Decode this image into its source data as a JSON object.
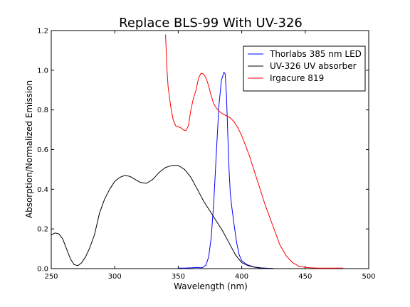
{
  "chart_data": {
    "type": "line",
    "title": "Replace BLS-99 With UV-326",
    "xlabel": "Wavelength (nm)",
    "ylabel": "Absorption/Normalized Emission",
    "xlim": [
      250,
      500
    ],
    "ylim": [
      0.0,
      1.2
    ],
    "xticks": [
      "250",
      "300",
      "350",
      "400",
      "450",
      "500"
    ],
    "yticks": [
      "0.0",
      "0.2",
      "0.4",
      "0.6",
      "0.8",
      "1.0",
      "1.2"
    ],
    "grid": false,
    "legend": "top-right",
    "series": [
      {
        "name": "Thorlabs 385 nm LED",
        "color": "#0000ff",
        "x": [
          350,
          355,
          360,
          365,
          368,
          370,
          372,
          374,
          376,
          378,
          380,
          382,
          384,
          386,
          387,
          388,
          389,
          390,
          391,
          392,
          394,
          396,
          398,
          400,
          404,
          410,
          415,
          420,
          425
        ],
        "y": [
          0.003,
          0.003,
          0.004,
          0.006,
          0.004,
          0.008,
          0.02,
          0.06,
          0.16,
          0.34,
          0.58,
          0.82,
          0.95,
          0.99,
          0.98,
          0.87,
          0.68,
          0.5,
          0.38,
          0.32,
          0.22,
          0.13,
          0.07,
          0.04,
          0.02,
          0.008,
          0.004,
          0.002,
          0.001
        ]
      },
      {
        "name": "UV-326 UV absorber",
        "color": "#000000",
        "x": [
          250,
          253,
          256,
          259,
          262,
          265,
          268,
          271,
          274,
          277,
          280,
          284,
          288,
          292,
          296,
          300,
          304,
          308,
          312,
          316,
          320,
          325,
          330,
          335,
          340,
          345,
          350,
          355,
          360,
          365,
          370,
          375,
          380,
          385,
          390,
          395,
          400,
          405,
          410,
          415,
          420,
          425
        ],
        "y": [
          0.17,
          0.18,
          0.175,
          0.15,
          0.1,
          0.05,
          0.02,
          0.015,
          0.03,
          0.06,
          0.1,
          0.17,
          0.28,
          0.35,
          0.4,
          0.44,
          0.46,
          0.47,
          0.465,
          0.45,
          0.435,
          0.43,
          0.45,
          0.485,
          0.51,
          0.52,
          0.52,
          0.5,
          0.46,
          0.4,
          0.34,
          0.29,
          0.24,
          0.19,
          0.13,
          0.07,
          0.03,
          0.015,
          0.007,
          0.003,
          0.001,
          0.0
        ]
      },
      {
        "name": "Irgacure 819",
        "color": "#ff0000",
        "x": [
          340,
          341,
          342,
          344,
          346,
          348,
          350,
          352,
          354,
          356,
          358,
          360,
          362,
          364,
          366,
          368,
          370,
          372,
          374,
          376,
          378,
          380,
          382,
          385,
          388,
          391,
          394,
          397,
          400,
          403,
          406,
          410,
          414,
          418,
          422,
          426,
          430,
          435,
          440,
          445,
          450,
          455,
          460,
          470,
          480
        ],
        "y": [
          1.18,
          1.02,
          0.92,
          0.82,
          0.75,
          0.72,
          0.715,
          0.71,
          0.7,
          0.695,
          0.72,
          0.8,
          0.86,
          0.9,
          0.96,
          0.985,
          0.98,
          0.96,
          0.92,
          0.87,
          0.83,
          0.81,
          0.795,
          0.78,
          0.77,
          0.76,
          0.74,
          0.71,
          0.67,
          0.62,
          0.57,
          0.49,
          0.41,
          0.33,
          0.26,
          0.19,
          0.12,
          0.065,
          0.03,
          0.012,
          0.006,
          0.004,
          0.003,
          0.003,
          0.003
        ]
      }
    ]
  }
}
